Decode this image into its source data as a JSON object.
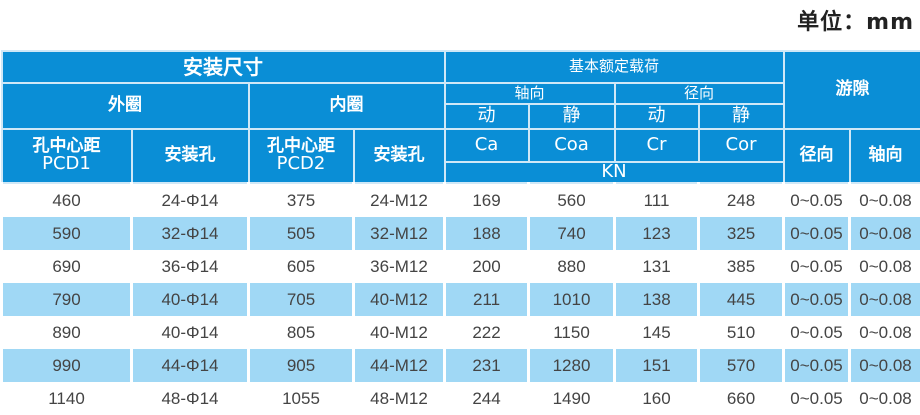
{
  "unit_label": "单位：mm",
  "header": {
    "install_size": "安装尺寸",
    "outer_ring": "外圈",
    "inner_ring": "内圈",
    "pcd1": [
      "孔中心距",
      "PCD1"
    ],
    "pcd2": [
      "孔中心距",
      "PCD2"
    ],
    "mount_hole_outer": "安装孔",
    "mount_hole_inner": "安装孔",
    "basic_load": "基本额定载荷",
    "axial": "轴向",
    "radial": "径向",
    "dynamic_a": "动",
    "static_a": "静",
    "dynamic_r": "动",
    "static_r": "静",
    "ca": "Ca",
    "coa": "Coa",
    "cr": "Cr",
    "cor": "Cor",
    "kn": "KN",
    "clearance": "游隙",
    "clearance_radial": "径向",
    "clearance_axial": "轴向"
  },
  "rows": [
    [
      "460",
      "24-Φ14",
      "375",
      "24-M12",
      "169",
      "560",
      "111",
      "248",
      "0~0.05",
      "0~0.08"
    ],
    [
      "590",
      "32-Φ14",
      "505",
      "32-M12",
      "188",
      "740",
      "123",
      "325",
      "0~0.05",
      "0~0.08"
    ],
    [
      "690",
      "36-Φ14",
      "605",
      "36-M12",
      "200",
      "880",
      "131",
      "385",
      "0~0.05",
      "0~0.08"
    ],
    [
      "790",
      "40-Φ14",
      "705",
      "40-M12",
      "211",
      "1010",
      "138",
      "445",
      "0~0.05",
      "0~0.08"
    ],
    [
      "890",
      "40-Φ14",
      "805",
      "40-M12",
      "222",
      "1150",
      "145",
      "510",
      "0~0.05",
      "0~0.08"
    ],
    [
      "990",
      "44-Φ14",
      "905",
      "44-M12",
      "231",
      "1280",
      "151",
      "570",
      "0~0.05",
      "0~0.08"
    ],
    [
      "1140",
      "48-Φ14",
      "1055",
      "48-M12",
      "244",
      "1490",
      "160",
      "660",
      "0~0.05",
      "0~0.08"
    ]
  ],
  "colors": {
    "header_bg": "#0a8ed6",
    "alt_row_bg": "#a0d8f5"
  }
}
